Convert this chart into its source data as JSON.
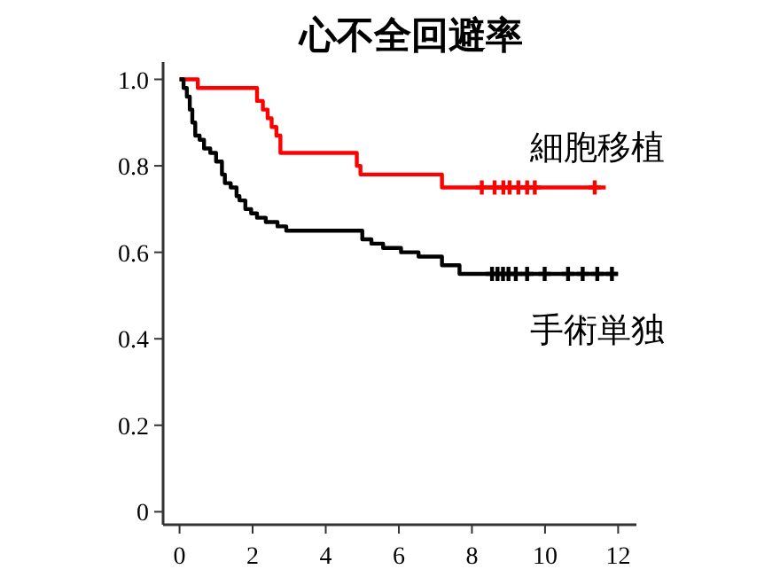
{
  "chart_data": {
    "type": "step",
    "title": "心不全回避率",
    "xlim": [
      -0.45,
      12.5
    ],
    "ylim": [
      -0.03,
      1.04
    ],
    "xticks": [
      0,
      2,
      4,
      6,
      8,
      10,
      12
    ],
    "yticks": [
      0,
      0.2,
      0.4,
      0.6,
      0.8,
      {
        "value": 1,
        "label": "1.0"
      }
    ],
    "line_style": "solid",
    "series": [
      {
        "name": "細胞移植",
        "color": "#ff0000",
        "x": [
          0,
          0.5,
          2.05,
          2.12,
          2.28,
          2.41,
          2.52,
          2.65,
          2.76,
          4.85,
          4.95,
          7.18,
          11.66
        ],
        "values": [
          1.0,
          0.98,
          0.98,
          0.95,
          0.93,
          0.91,
          0.89,
          0.87,
          0.83,
          0.8,
          0.78,
          0.75,
          0.75
        ]
      },
      {
        "name": "手術単独",
        "color": "#000000",
        "x": [
          0,
          0.11,
          0.2,
          0.28,
          0.35,
          0.43,
          0.55,
          0.67,
          0.84,
          1.0,
          1.16,
          1.24,
          1.4,
          1.56,
          1.64,
          1.8,
          1.96,
          2.12,
          2.36,
          2.68,
          2.92,
          5.0,
          5.25,
          5.57,
          6.06,
          6.54,
          7.18,
          7.66,
          11.99
        ],
        "values": [
          1.0,
          0.98,
          0.96,
          0.93,
          0.9,
          0.87,
          0.86,
          0.84,
          0.83,
          0.81,
          0.78,
          0.76,
          0.75,
          0.73,
          0.72,
          0.7,
          0.69,
          0.68,
          0.67,
          0.66,
          0.65,
          0.63,
          0.62,
          0.61,
          0.6,
          0.59,
          0.57,
          0.55,
          0.55
        ]
      },
      {
        "type": "scatter",
        "marker": "cross",
        "color": "#ff0000",
        "x": [
          8.27,
          8.62,
          8.86,
          9.03,
          9.27,
          9.51,
          9.72,
          11.36
        ],
        "values": [
          0.75,
          0.75,
          0.75,
          0.75,
          0.75,
          0.75,
          0.75,
          0.75
        ]
      },
      {
        "type": "scatter",
        "marker": "cross",
        "color": "#000000",
        "x": [
          8.55,
          8.7,
          8.85,
          9.0,
          9.2,
          9.51,
          9.99,
          10.63,
          11.03,
          11.43,
          11.83
        ],
        "values": [
          0.55,
          0.55,
          0.55,
          0.55,
          0.55,
          0.55,
          0.55,
          0.55,
          0.55,
          0.55,
          0.55
        ]
      }
    ]
  }
}
